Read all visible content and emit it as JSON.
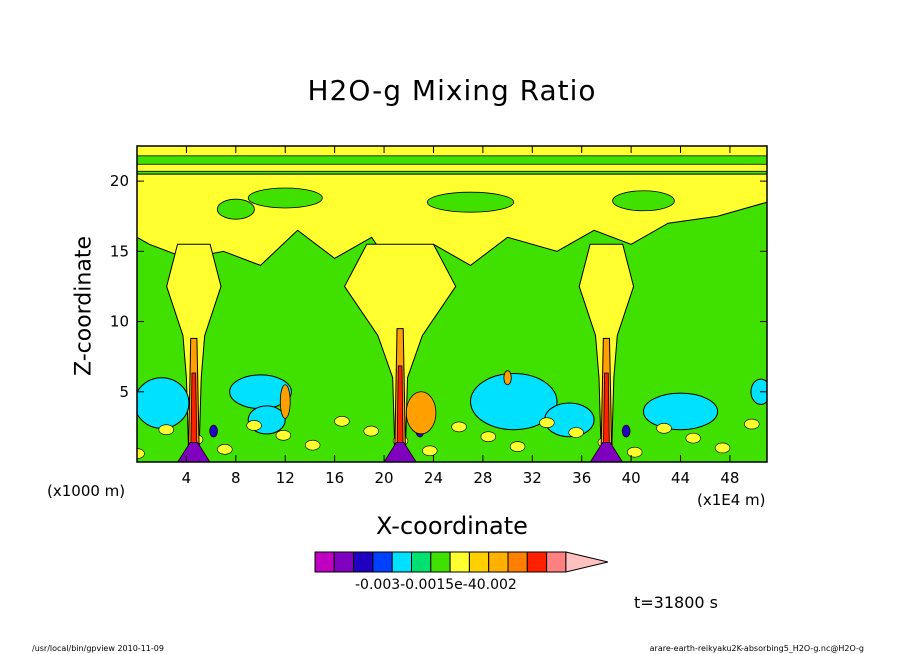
{
  "chart_data": {
    "type": "heatmap",
    "title": "H2O-g Mixing Ratio",
    "xlabel": "X-coordinate",
    "ylabel": "Z-coordinate",
    "x_unit_primary": "(x1000 m)",
    "x_unit_secondary": "(x1E4 m)",
    "x_ticks": [
      "4",
      "8",
      "12",
      "16",
      "20",
      "24",
      "28",
      "32",
      "36",
      "40",
      "44",
      "48"
    ],
    "y_ticks": [
      "5",
      "10",
      "15",
      "20"
    ],
    "xlim": [
      0,
      51
    ],
    "ylim": [
      0,
      22.5
    ],
    "colorbar_label": "-0.003-0.0015e-40.002",
    "time_label": "t=31800 s",
    "levels_colors": [
      "#c000c0",
      "#8000c0",
      "#2000c0",
      "#0040ff",
      "#00e0ff",
      "#00e070",
      "#40e000",
      "#ffff30",
      "#ffd000",
      "#ffb000",
      "#ff8000",
      "#ff2000",
      "#ff8080",
      "#ffc0c0"
    ],
    "field_colors": {
      "background": "#40e000",
      "yellow": "#ffff30",
      "cyan": "#00e0ff",
      "orange": "#ffa000",
      "red": "#ff2000",
      "blue": "#2000c0",
      "purple": "#8000c0"
    },
    "plumes_x": [
      4.6,
      21.3,
      38.0
    ]
  },
  "footer": {
    "left": "/usr/local/bin/gpview   2010-11-09",
    "right": "arare-earth-reikyaku2K-absorbing5_H2O-g.nc@H2O-g"
  }
}
